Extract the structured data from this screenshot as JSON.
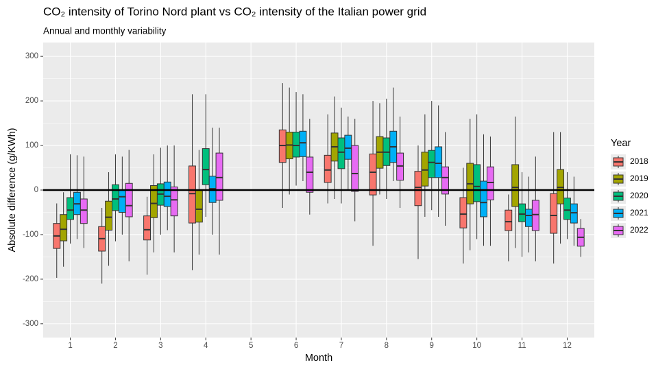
{
  "chart_data": {
    "type": "boxplot",
    "title": "CO₂ intensity of Torino Nord plant vs CO₂ intensity of the Italian power grid",
    "subtitle": "Annual and monthly variability",
    "x_label": "Month",
    "y_label": "Absolute difference (g/KWh)",
    "legend_title": "Year",
    "categories": [
      "1",
      "2",
      "3",
      "4",
      "5",
      "6",
      "7",
      "8",
      "9",
      "10",
      "11",
      "12"
    ],
    "xlim": [
      0.4,
      12.6
    ],
    "ylim": [
      -331,
      331
    ],
    "yticks": [
      -300,
      -200,
      -100,
      0,
      100,
      200,
      300
    ],
    "hline": 0,
    "grid": true,
    "series": [
      {
        "name": "2018",
        "color": "#F8766D",
        "low": [
          -197,
          -210,
          -190,
          -180,
          null,
          -40,
          -30,
          -125,
          -155,
          -165,
          -160,
          -165
        ],
        "q1": [
          -131,
          -137,
          -112,
          -74,
          null,
          62,
          17,
          -11,
          -35,
          -85,
          -91,
          -97
        ],
        "median": [
          -103,
          -109,
          -89,
          -8,
          null,
          100,
          45,
          40,
          6,
          -54,
          -71,
          -57
        ],
        "q3": [
          -75,
          -82,
          -58,
          54,
          null,
          135,
          78,
          81,
          42,
          -17,
          -45,
          -8
        ],
        "high": [
          -30,
          -40,
          -15,
          215,
          null,
          240,
          170,
          200,
          100,
          50,
          -10,
          130
        ]
      },
      {
        "name": "2019",
        "color": "#A3A500",
        "low": [
          -172,
          -170,
          -140,
          -145,
          null,
          -10,
          -20,
          -10,
          -60,
          -135,
          -130,
          -120
        ],
        "q1": [
          -114,
          -90,
          -62,
          -72,
          null,
          70,
          65,
          49,
          9,
          -31,
          -37,
          -31
        ],
        "median": [
          -88,
          -61,
          -30,
          -43,
          null,
          101,
          97,
          85,
          45,
          14,
          6,
          6
        ],
        "q3": [
          -55,
          -25,
          10,
          0,
          null,
          130,
          128,
          120,
          85,
          60,
          57,
          46
        ],
        "high": [
          -5,
          40,
          80,
          90,
          null,
          230,
          210,
          195,
          170,
          160,
          165,
          130
        ]
      },
      {
        "name": "2020",
        "color": "#00BF7D",
        "low": [
          -120,
          -115,
          -100,
          -60,
          null,
          10,
          -30,
          -20,
          -45,
          -110,
          -150,
          -110
        ],
        "q1": [
          -66,
          -46,
          -34,
          12,
          null,
          74,
          48,
          55,
          28,
          -26,
          -71,
          -66
        ],
        "median": [
          -45,
          -20,
          -9,
          46,
          null,
          100,
          85,
          85,
          62,
          8,
          -54,
          -45
        ],
        "q3": [
          -17,
          12,
          14,
          93,
          null,
          130,
          117,
          117,
          89,
          57,
          -31,
          -18
        ],
        "high": [
          80,
          80,
          95,
          215,
          null,
          220,
          185,
          205,
          200,
          170,
          40,
          40
        ]
      },
      {
        "name": "2021",
        "color": "#00B0F6",
        "low": [
          -110,
          -100,
          -90,
          -100,
          null,
          20,
          0,
          20,
          -60,
          -125,
          -140,
          -125
        ],
        "q1": [
          -55,
          -50,
          -37,
          -28,
          null,
          75,
          69,
          62,
          28,
          -60,
          -82,
          -74
        ],
        "median": [
          -31,
          -15,
          -14,
          3,
          null,
          106,
          94,
          97,
          60,
          -28,
          -57,
          -51
        ],
        "q3": [
          -5,
          0,
          18,
          31,
          null,
          132,
          123,
          132,
          97,
          20,
          -43,
          -31
        ],
        "high": [
          78,
          75,
          100,
          140,
          null,
          215,
          165,
          230,
          190,
          125,
          30,
          30
        ]
      },
      {
        "name": "2022",
        "color": "#E76BF3",
        "low": [
          -130,
          -160,
          -140,
          -145,
          null,
          -55,
          -70,
          -40,
          -80,
          -125,
          -160,
          -150
        ],
        "q1": [
          -75,
          -60,
          -58,
          -23,
          null,
          -5,
          -3,
          22,
          -9,
          -22,
          -91,
          -126
        ],
        "median": [
          -45,
          -35,
          -22,
          28,
          null,
          40,
          37,
          54,
          28,
          17,
          -55,
          -106
        ],
        "q3": [
          -20,
          15,
          7,
          83,
          null,
          74,
          100,
          83,
          52,
          52,
          -23,
          -86
        ],
        "high": [
          75,
          90,
          100,
          140,
          null,
          160,
          160,
          165,
          130,
          120,
          75,
          -65
        ]
      }
    ]
  }
}
